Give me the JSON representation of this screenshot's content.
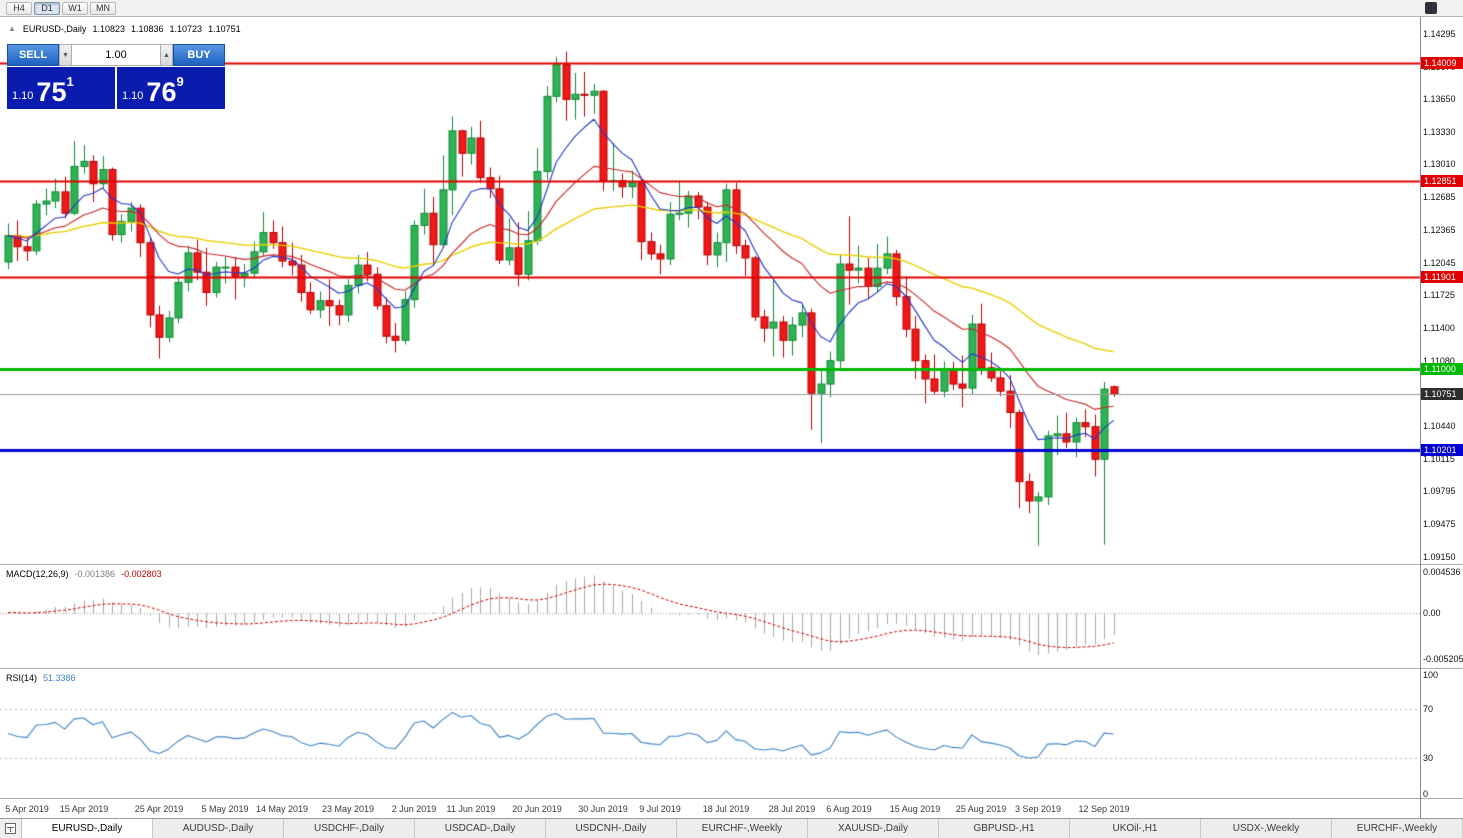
{
  "toolbar": {
    "timeframes": [
      "H4",
      "D1",
      "W1",
      "MN"
    ],
    "active_timeframe": "D1"
  },
  "chart_header": {
    "collapse_icon": "▲",
    "symbol": "EURUSD-,Daily",
    "open": "1.10823",
    "high": "1.10836",
    "low": "1.10723",
    "close": "1.10751"
  },
  "one_click": {
    "sell_label": "SELL",
    "buy_label": "BUY",
    "volume": "1.00",
    "spin_down": "▼",
    "spin_up": "▲",
    "bid": {
      "prefix": "1.10",
      "big": "75",
      "sup": "1"
    },
    "ask": {
      "prefix": "1.10",
      "big": "76",
      "sup": "9"
    },
    "panel_color": "#0a1cae",
    "button_color": "#2a72d8"
  },
  "price_axis": {
    "ticks": [
      "1.14295",
      "1.13970",
      "1.13650",
      "1.13330",
      "1.13010",
      "1.12685",
      "1.12365",
      "1.12045",
      "1.11725",
      "1.11400",
      "1.11080",
      "1.10760",
      "1.10440",
      "1.10115",
      "1.09795",
      "1.09475",
      "1.09150"
    ]
  },
  "lines": {
    "resistance": [
      {
        "value": 1.14009,
        "label": "1.14009",
        "color": "#e00000",
        "width": 2
      },
      {
        "value": 1.12851,
        "label": "1.12851",
        "color": "#e00000",
        "width": 2
      },
      {
        "value": 1.11901,
        "label": "1.11901",
        "color": "#e00000",
        "width": 2
      }
    ],
    "support_green": {
      "value": 1.11,
      "label": "1.11000",
      "color": "#00b800",
      "width": 3
    },
    "support_blue": {
      "value": 1.10201,
      "label": "1.10201",
      "color": "#0000d0",
      "width": 3
    },
    "current": {
      "value": 1.10751,
      "label": "1.10751",
      "color": "#9a9a9a",
      "label_bg": "#2e2e2e"
    }
  },
  "chart_data": {
    "type": "candlestick",
    "symbol": "EURUSD-",
    "timeframe": "Daily",
    "y_range": [
      1.0908,
      1.1446
    ],
    "colors": {
      "up": "#2eb353",
      "up_border": "#128a3a",
      "down": "#f01818",
      "down_border": "#b60000"
    },
    "moving_averages": [
      {
        "period": 50,
        "color": "#e8d000",
        "width": 1.4
      },
      {
        "period": 20,
        "color": "#c62828",
        "width": 1.1
      },
      {
        "period": 8,
        "color": "#2137c8",
        "width": 1.1
      }
    ],
    "date_labels": [
      {
        "label": "5 Apr 2019",
        "i": 2
      },
      {
        "label": "15 Apr 2019",
        "i": 8
      },
      {
        "label": "25 Apr 2019",
        "i": 16
      },
      {
        "label": "5 May 2019",
        "i": 23
      },
      {
        "label": "14 May 2019",
        "i": 29
      },
      {
        "label": "23 May 2019",
        "i": 36
      },
      {
        "label": "2 Jun 2019",
        "i": 43
      },
      {
        "label": "11 Jun 2019",
        "i": 49
      },
      {
        "label": "20 Jun 2019",
        "i": 56
      },
      {
        "label": "30 Jun 2019",
        "i": 63
      },
      {
        "label": "9 Jul 2019",
        "i": 69
      },
      {
        "label": "18 Jul 2019",
        "i": 76
      },
      {
        "label": "28 Jul 2019",
        "i": 83
      },
      {
        "label": "6 Aug 2019",
        "i": 89
      },
      {
        "label": "15 Aug 2019",
        "i": 96
      },
      {
        "label": "25 Aug 2019",
        "i": 103
      },
      {
        "label": "3 Sep 2019",
        "i": 109
      },
      {
        "label": "12 Sep 2019",
        "i": 116
      }
    ],
    "ohlc": [
      [
        1.1205,
        1.1243,
        1.1198,
        1.1231
      ],
      [
        1.1231,
        1.1246,
        1.1206,
        1.122
      ],
      [
        1.122,
        1.123,
        1.1206,
        1.1216
      ],
      [
        1.1216,
        1.1266,
        1.1212,
        1.1262
      ],
      [
        1.1262,
        1.1277,
        1.1251,
        1.1265
      ],
      [
        1.1265,
        1.1287,
        1.1258,
        1.1274
      ],
      [
        1.1274,
        1.1289,
        1.1248,
        1.1253
      ],
      [
        1.1253,
        1.1324,
        1.1251,
        1.1299
      ],
      [
        1.1299,
        1.132,
        1.1292,
        1.1304
      ],
      [
        1.1304,
        1.131,
        1.1264,
        1.1282
      ],
      [
        1.1282,
        1.1309,
        1.1278,
        1.1296
      ],
      [
        1.1296,
        1.1298,
        1.1226,
        1.1232
      ],
      [
        1.1232,
        1.1252,
        1.1224,
        1.1245
      ],
      [
        1.1245,
        1.1264,
        1.1235,
        1.1258
      ],
      [
        1.1258,
        1.1262,
        1.121,
        1.1224
      ],
      [
        1.1224,
        1.123,
        1.1141,
        1.1153
      ],
      [
        1.1153,
        1.1162,
        1.111,
        1.1131
      ],
      [
        1.1131,
        1.1157,
        1.1126,
        1.115
      ],
      [
        1.115,
        1.119,
        1.1145,
        1.1185
      ],
      [
        1.1185,
        1.1221,
        1.1176,
        1.1214
      ],
      [
        1.1214,
        1.1227,
        1.1187,
        1.1195
      ],
      [
        1.1195,
        1.1219,
        1.1162,
        1.1175
      ],
      [
        1.1175,
        1.1205,
        1.117,
        1.12
      ],
      [
        1.12,
        1.121,
        1.1184,
        1.12
      ],
      [
        1.12,
        1.121,
        1.1168,
        1.1191
      ],
      [
        1.1191,
        1.1203,
        1.118,
        1.1194
      ],
      [
        1.1194,
        1.1225,
        1.119,
        1.1215
      ],
      [
        1.1215,
        1.1254,
        1.1211,
        1.1234
      ],
      [
        1.1234,
        1.1246,
        1.1218,
        1.1224
      ],
      [
        1.1224,
        1.124,
        1.12,
        1.1206
      ],
      [
        1.1206,
        1.1224,
        1.1192,
        1.1202
      ],
      [
        1.1202,
        1.1212,
        1.1166,
        1.1175
      ],
      [
        1.1175,
        1.1185,
        1.1154,
        1.1158
      ],
      [
        1.1158,
        1.1176,
        1.115,
        1.1167
      ],
      [
        1.1167,
        1.1188,
        1.1142,
        1.1162
      ],
      [
        1.1162,
        1.1168,
        1.1143,
        1.1153
      ],
      [
        1.1153,
        1.1188,
        1.1146,
        1.1182
      ],
      [
        1.1182,
        1.1212,
        1.1174,
        1.1202
      ],
      [
        1.1202,
        1.1215,
        1.1186,
        1.1193
      ],
      [
        1.1193,
        1.12,
        1.1158,
        1.1162
      ],
      [
        1.1162,
        1.117,
        1.1125,
        1.1132
      ],
      [
        1.1132,
        1.1145,
        1.1116,
        1.1128
      ],
      [
        1.1128,
        1.1176,
        1.1124,
        1.1168
      ],
      [
        1.1168,
        1.1246,
        1.116,
        1.1241
      ],
      [
        1.1241,
        1.1277,
        1.1232,
        1.1253
      ],
      [
        1.1253,
        1.1269,
        1.1201,
        1.1222
      ],
      [
        1.1222,
        1.131,
        1.1219,
        1.1276
      ],
      [
        1.1276,
        1.1348,
        1.1251,
        1.1334
      ],
      [
        1.1334,
        1.1335,
        1.1289,
        1.1312
      ],
      [
        1.1312,
        1.1338,
        1.1301,
        1.1327
      ],
      [
        1.1327,
        1.1344,
        1.1283,
        1.1288
      ],
      [
        1.1288,
        1.1298,
        1.1268,
        1.1277
      ],
      [
        1.1277,
        1.129,
        1.1203,
        1.1207
      ],
      [
        1.1207,
        1.1248,
        1.1202,
        1.1219
      ],
      [
        1.1219,
        1.1244,
        1.1181,
        1.1193
      ],
      [
        1.1193,
        1.1255,
        1.1187,
        1.1226
      ],
      [
        1.1226,
        1.1317,
        1.1222,
        1.1294
      ],
      [
        1.1294,
        1.1378,
        1.1286,
        1.1368
      ],
      [
        1.1368,
        1.1407,
        1.1362,
        1.1399
      ],
      [
        1.1399,
        1.1412,
        1.1344,
        1.1365
      ],
      [
        1.1365,
        1.1391,
        1.1345,
        1.137
      ],
      [
        1.137,
        1.1392,
        1.1348,
        1.1369
      ],
      [
        1.1369,
        1.138,
        1.1351,
        1.1373
      ],
      [
        1.1373,
        1.1374,
        1.1275,
        1.1285
      ],
      [
        1.1285,
        1.1322,
        1.1275,
        1.1285
      ],
      [
        1.1285,
        1.1292,
        1.1268,
        1.1279
      ],
      [
        1.1279,
        1.1295,
        1.1268,
        1.1283
      ],
      [
        1.1283,
        1.1288,
        1.1207,
        1.1225
      ],
      [
        1.1225,
        1.1234,
        1.1207,
        1.1213
      ],
      [
        1.1213,
        1.1222,
        1.1193,
        1.1208
      ],
      [
        1.1208,
        1.1264,
        1.1202,
        1.1252
      ],
      [
        1.1252,
        1.1285,
        1.1246,
        1.1253
      ],
      [
        1.1253,
        1.1275,
        1.1239,
        1.127
      ],
      [
        1.127,
        1.1274,
        1.1247,
        1.1259
      ],
      [
        1.1259,
        1.1264,
        1.1202,
        1.1212
      ],
      [
        1.1212,
        1.1234,
        1.12,
        1.1224
      ],
      [
        1.1224,
        1.1282,
        1.1205,
        1.1276
      ],
      [
        1.1276,
        1.1283,
        1.1213,
        1.1221
      ],
      [
        1.1221,
        1.1227,
        1.1191,
        1.1209
      ],
      [
        1.1209,
        1.1211,
        1.1147,
        1.1151
      ],
      [
        1.1151,
        1.1158,
        1.1126,
        1.114
      ],
      [
        1.114,
        1.1187,
        1.1112,
        1.1146
      ],
      [
        1.1146,
        1.1152,
        1.1111,
        1.1128
      ],
      [
        1.1128,
        1.1151,
        1.1113,
        1.1143
      ],
      [
        1.1143,
        1.1163,
        1.1131,
        1.1155
      ],
      [
        1.1155,
        1.1159,
        1.104,
        1.1076
      ],
      [
        1.1076,
        1.1098,
        1.1027,
        1.1085
      ],
      [
        1.1085,
        1.1117,
        1.1072,
        1.1108
      ],
      [
        1.1108,
        1.1212,
        1.1101,
        1.1203
      ],
      [
        1.1203,
        1.125,
        1.1163,
        1.1197
      ],
      [
        1.1197,
        1.1221,
        1.1184,
        1.1199
      ],
      [
        1.1199,
        1.1209,
        1.1169,
        1.1181
      ],
      [
        1.1181,
        1.1223,
        1.1175,
        1.1199
      ],
      [
        1.1199,
        1.123,
        1.1193,
        1.1213
      ],
      [
        1.1213,
        1.1217,
        1.1162,
        1.1171
      ],
      [
        1.1171,
        1.1191,
        1.1131,
        1.1139
      ],
      [
        1.1139,
        1.1152,
        1.109,
        1.1108
      ],
      [
        1.1108,
        1.1114,
        1.1066,
        1.109
      ],
      [
        1.109,
        1.1114,
        1.1075,
        1.1078
      ],
      [
        1.1078,
        1.1107,
        1.1072,
        1.1099
      ],
      [
        1.1099,
        1.1107,
        1.1079,
        1.1085
      ],
      [
        1.1085,
        1.1113,
        1.1062,
        1.1081
      ],
      [
        1.1081,
        1.1153,
        1.1075,
        1.1144
      ],
      [
        1.1144,
        1.1164,
        1.1094,
        1.1101
      ],
      [
        1.1101,
        1.1116,
        1.1087,
        1.1091
      ],
      [
        1.1091,
        1.1098,
        1.1073,
        1.1078
      ],
      [
        1.1078,
        1.1094,
        1.1042,
        1.1057
      ],
      [
        1.1057,
        1.106,
        1.0963,
        1.0989
      ],
      [
        1.0989,
        1.0997,
        1.0958,
        1.097
      ],
      [
        1.097,
        1.0979,
        1.0926,
        1.0974
      ],
      [
        1.0974,
        1.1039,
        1.0966,
        1.1034
      ],
      [
        1.1034,
        1.1054,
        1.1015,
        1.1036
      ],
      [
        1.1036,
        1.1057,
        1.1022,
        1.1028
      ],
      [
        1.1028,
        1.1052,
        1.1013,
        1.1047
      ],
      [
        1.1047,
        1.106,
        1.1033,
        1.1043
      ],
      [
        1.1043,
        1.1055,
        1.0994,
        1.1011
      ],
      [
        1.1011,
        1.1087,
        1.0927,
        1.108
      ],
      [
        1.10823,
        1.10836,
        1.10723,
        1.10751
      ]
    ]
  },
  "macd": {
    "label": "MACD(12,26,9)",
    "value_main": "-0.001386",
    "value_signal": "-0.002803",
    "fast": 12,
    "slow": 26,
    "signal": 9,
    "range": [
      -0.00619,
      0.00531
    ],
    "axis": [
      {
        "v": 0.004536,
        "label": "0.004536"
      },
      {
        "v": 0,
        "label": "0.00"
      },
      {
        "v": -0.005205,
        "label": "-0.005205"
      }
    ],
    "hist_color": "#a8a8a8",
    "signal_color": "#d40000"
  },
  "rsi": {
    "label": "RSI(14)",
    "value": "51.3386",
    "period": 14,
    "levels": [
      70,
      30
    ],
    "color": "#3f85c6",
    "axis": [
      {
        "v": 100,
        "label": "100"
      },
      {
        "v": 70,
        "label": "70"
      },
      {
        "v": 30,
        "label": "30"
      },
      {
        "v": 0,
        "label": "0"
      }
    ]
  },
  "tabbar": {
    "active_index": 0,
    "tabs": [
      "EURUSD-,Daily",
      "AUDUSD-,Daily",
      "USDCHF-,Daily",
      "USDCAD-,Daily",
      "USDCNH-,Daily",
      "EURCHF-,Weekly",
      "XAUUSD-,Daily",
      "GBPUSD-,H1",
      "UKOil-,H1",
      "USDX-,Weekly",
      "EURCHF-,Weekly"
    ]
  }
}
